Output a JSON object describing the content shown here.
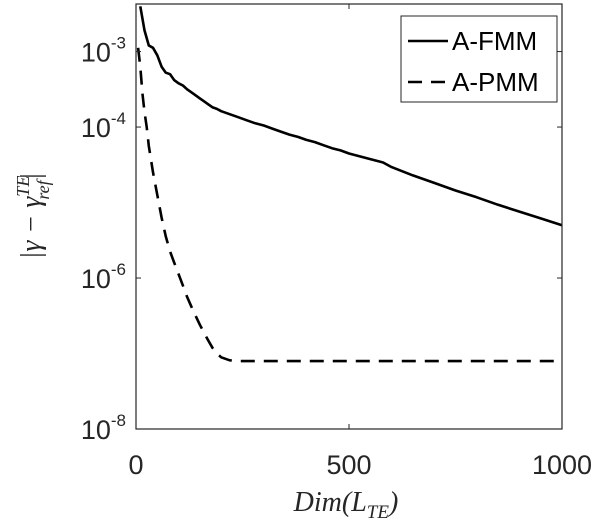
{
  "chart_data": {
    "type": "line",
    "xlabel": "Dim(L_TE)",
    "xlabel_parts": {
      "main": "Dim(L",
      "sub": "TE",
      "close": ")"
    },
    "ylabel": "|γ - γ^TE_ref|",
    "ylabel_parts": {
      "pre": "|γ − γ",
      "sup": "TE",
      "sub": "ref",
      "post": "|"
    },
    "xlim": [
      0,
      1000
    ],
    "ylim_log10": [
      -8,
      -2.37
    ],
    "yscale": "log",
    "grid": false,
    "legend_position": "top-right",
    "x_ticks": [
      {
        "value": 0,
        "label": "0"
      },
      {
        "value": 500,
        "label": "500"
      },
      {
        "value": 1000,
        "label": "1000"
      }
    ],
    "y_ticks": [
      {
        "log10": -8,
        "base": "10",
        "exp": "-8"
      },
      {
        "log10": -6,
        "base": "10",
        "exp": "-6"
      },
      {
        "log10": -4,
        "base": "10",
        "exp": "-4"
      },
      {
        "log10": -3,
        "base": "10",
        "exp": "-3"
      }
    ],
    "series": [
      {
        "name": "A-FMM",
        "style": "solid",
        "color": "#000000",
        "points": [
          [
            10,
            -2.4
          ],
          [
            20,
            -2.72
          ],
          [
            30,
            -2.92
          ],
          [
            40,
            -2.95
          ],
          [
            50,
            -3.05
          ],
          [
            60,
            -3.2
          ],
          [
            70,
            -3.28
          ],
          [
            80,
            -3.3
          ],
          [
            90,
            -3.38
          ],
          [
            100,
            -3.42
          ],
          [
            110,
            -3.45
          ],
          [
            120,
            -3.5
          ],
          [
            130,
            -3.54
          ],
          [
            140,
            -3.58
          ],
          [
            150,
            -3.62
          ],
          [
            160,
            -3.66
          ],
          [
            170,
            -3.7
          ],
          [
            180,
            -3.74
          ],
          [
            190,
            -3.76
          ],
          [
            200,
            -3.79
          ],
          [
            220,
            -3.83
          ],
          [
            240,
            -3.87
          ],
          [
            260,
            -3.91
          ],
          [
            280,
            -3.95
          ],
          [
            300,
            -3.98
          ],
          [
            320,
            -4.02
          ],
          [
            340,
            -4.06
          ],
          [
            360,
            -4.1
          ],
          [
            380,
            -4.13
          ],
          [
            400,
            -4.17
          ],
          [
            420,
            -4.2
          ],
          [
            440,
            -4.24
          ],
          [
            460,
            -4.28
          ],
          [
            480,
            -4.31
          ],
          [
            500,
            -4.35
          ],
          [
            520,
            -4.38
          ],
          [
            540,
            -4.41
          ],
          [
            560,
            -4.44
          ],
          [
            580,
            -4.47
          ],
          [
            600,
            -4.53
          ],
          [
            650,
            -4.64
          ],
          [
            700,
            -4.74
          ],
          [
            750,
            -4.84
          ],
          [
            800,
            -4.93
          ],
          [
            850,
            -5.03
          ],
          [
            900,
            -5.12
          ],
          [
            950,
            -5.21
          ],
          [
            1000,
            -5.3
          ]
        ]
      },
      {
        "name": "A-PMM",
        "style": "dashed",
        "color": "#000000",
        "points": [
          [
            5,
            -2.95
          ],
          [
            10,
            -3.2
          ],
          [
            15,
            -3.55
          ],
          [
            20,
            -3.8
          ],
          [
            25,
            -4.0
          ],
          [
            30,
            -4.25
          ],
          [
            40,
            -4.6
          ],
          [
            50,
            -4.9
          ],
          [
            60,
            -5.2
          ],
          [
            70,
            -5.45
          ],
          [
            80,
            -5.65
          ],
          [
            90,
            -5.8
          ],
          [
            100,
            -5.95
          ],
          [
            110,
            -6.1
          ],
          [
            120,
            -6.25
          ],
          [
            130,
            -6.38
          ],
          [
            140,
            -6.5
          ],
          [
            150,
            -6.62
          ],
          [
            160,
            -6.73
          ],
          [
            170,
            -6.83
          ],
          [
            180,
            -6.93
          ],
          [
            190,
            -7.0
          ],
          [
            200,
            -7.05
          ],
          [
            220,
            -7.09
          ],
          [
            240,
            -7.1
          ],
          [
            300,
            -7.1
          ],
          [
            400,
            -7.1
          ],
          [
            500,
            -7.1
          ],
          [
            600,
            -7.1
          ],
          [
            700,
            -7.1
          ],
          [
            800,
            -7.1
          ],
          [
            900,
            -7.1
          ],
          [
            1000,
            -7.1
          ]
        ]
      }
    ]
  }
}
